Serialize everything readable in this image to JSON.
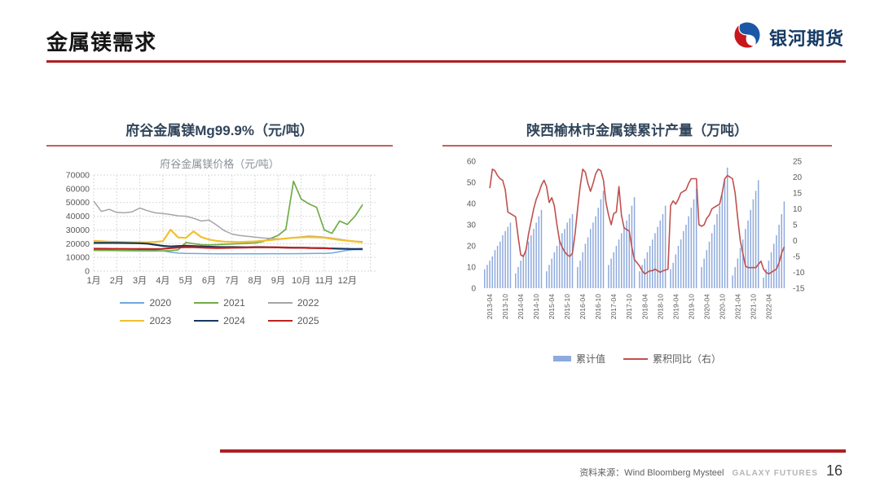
{
  "slide": {
    "title": "金属镁需求",
    "page_number": "16"
  },
  "logo": {
    "brand": "银河期货"
  },
  "footer": {
    "source": "资料来源：Wind Bloomberg Mysteel",
    "brand": "GALAXY FUTURES"
  },
  "theme": {
    "accent_red": "#AD1F24",
    "panel_rule_red": "#C2625C",
    "panel_title_color": "#31455A",
    "axis_text_color": "#595959",
    "grid_color": "#D9D9D9",
    "logo_navy": "#163A66",
    "logo_red": "#C8161D",
    "logo_blue": "#1B57A6"
  },
  "chart_data": [
    {
      "type": "line",
      "panel_title": "府谷金属镁Mg99.9%（元/吨）",
      "title": "府谷金属镁价格（元/吨）",
      "categories": [
        "1月",
        "2月",
        "3月",
        "4月",
        "5月",
        "6月",
        "7月",
        "8月",
        "9月",
        "10月",
        "11月",
        "12月"
      ],
      "ylim": [
        0,
        70000
      ],
      "ytick_step": 10000,
      "points_per_month": 3,
      "grid": true,
      "legend_rows": [
        [
          "2020",
          "2021",
          "2022"
        ],
        [
          "2023",
          "2024",
          "2025"
        ]
      ],
      "series": [
        {
          "name": "2020",
          "color": "#6FA8DC",
          "values": [
            15300,
            15250,
            15200,
            15150,
            15100,
            15050,
            15000,
            15000,
            14950,
            14800,
            13800,
            13100,
            12900,
            12800,
            12750,
            12700,
            12650,
            12650,
            12600,
            12600,
            12600,
            12650,
            12650,
            12700,
            12700,
            12700,
            12700,
            12750,
            12800,
            12850,
            12900,
            13200,
            14200,
            15200,
            15700,
            15500
          ]
        },
        {
          "name": "2021",
          "color": "#70AD47",
          "values": [
            15100,
            15050,
            15000,
            14950,
            14900,
            14850,
            14800,
            14750,
            14700,
            14700,
            14900,
            15500,
            20800,
            20000,
            19200,
            19100,
            19300,
            19600,
            19800,
            20000,
            20200,
            20500,
            21500,
            23800,
            26000,
            30500,
            65500,
            52500,
            49000,
            46500,
            30000,
            27500,
            36500,
            34000,
            40000,
            48500
          ]
        },
        {
          "name": "2022",
          "color": "#A6A6A6",
          "values": [
            51000,
            43500,
            45000,
            42800,
            42500,
            43200,
            46000,
            44000,
            42500,
            42000,
            41200,
            40300,
            40000,
            38500,
            36500,
            37200,
            33500,
            29500,
            27000,
            26000,
            25400,
            24800,
            24200,
            23800,
            23500,
            23800,
            24300,
            25000,
            25500,
            25200,
            24800,
            24000,
            23200,
            22400,
            21800,
            21500
          ]
        },
        {
          "name": "2023",
          "color": "#F2C02E",
          "values": [
            22000,
            21800,
            21500,
            21300,
            21200,
            21000,
            21000,
            21000,
            21300,
            21800,
            30200,
            24500,
            24200,
            29000,
            24800,
            23000,
            22000,
            21500,
            21300,
            21200,
            21400,
            21600,
            22100,
            22600,
            23200,
            23800,
            24300,
            24600,
            24800,
            24600,
            24400,
            23500,
            22800,
            22200,
            21600,
            21000
          ]
        },
        {
          "name": "2024",
          "color": "#17375E",
          "values": [
            20500,
            20500,
            20500,
            20500,
            20450,
            20400,
            20300,
            20000,
            19200,
            18400,
            18000,
            18300,
            18500,
            18300,
            18000,
            17800,
            17600,
            17500,
            17500,
            17450,
            17400,
            17500,
            17500,
            17400,
            17250,
            17100,
            17000,
            17000,
            16900,
            16800,
            16700,
            16500,
            16300,
            16200,
            16100,
            16200
          ]
        },
        {
          "name": "2025",
          "color": "#C0201E",
          "values": [
            16300,
            16300,
            16250,
            16200,
            16200,
            16150,
            16100,
            16050,
            16000,
            16200,
            16700,
            17200,
            17500,
            17400,
            17200,
            16950,
            16850,
            16900,
            17000,
            17100,
            17200,
            17300,
            17350,
            17300,
            17300,
            17200,
            17100,
            17000,
            16900,
            16800,
            16700,
            16500,
            null,
            null,
            null,
            null
          ]
        }
      ]
    },
    {
      "type": "bar+line",
      "panel_title": "陕西榆林市金属镁累计产量（万吨）",
      "left_ylim": [
        0,
        60
      ],
      "left_ytick_step": 10,
      "right_ylim": [
        -15,
        25
      ],
      "right_ytick_step": 5,
      "grid": false,
      "start_year": 2013,
      "months_total": 118,
      "bars": {
        "name": "累计值",
        "color": "#8FAADC",
        "by_year": {
          "2013": [
            9,
            11,
            13,
            15,
            18,
            20,
            22,
            25,
            27,
            29,
            31
          ],
          "2014": [
            7,
            10,
            13,
            16,
            19,
            22,
            25,
            28,
            31,
            34,
            37
          ],
          "2015": [
            8,
            11,
            14,
            17,
            20,
            23,
            26,
            28,
            31,
            33,
            35
          ],
          "2016": [
            10,
            13,
            17,
            21,
            24,
            28,
            31,
            34,
            38,
            42,
            46
          ],
          "2017": [
            11,
            14,
            17,
            20,
            23,
            26,
            29,
            32,
            35,
            39,
            43
          ],
          "2018": [
            8,
            11,
            14,
            17,
            20,
            23,
            26,
            29,
            32,
            35,
            39
          ],
          "2019": [
            9,
            12,
            16,
            20,
            23,
            27,
            30,
            34,
            38,
            42,
            47
          ],
          "2020": [
            10,
            14,
            18,
            22,
            26,
            30,
            35,
            39,
            44,
            51,
            57
          ],
          "2021": [
            6,
            10,
            14,
            19,
            23,
            28,
            32,
            37,
            42,
            46,
            51
          ],
          "2022": [
            5,
            9,
            13,
            17,
            21,
            25,
            30,
            35,
            41
          ]
        },
        "first_bar_month": 2
      },
      "line": {
        "name": "累积同比（右）",
        "color": "#C0504D",
        "start_index": 3,
        "values": [
          16.5,
          22.5,
          22,
          20.5,
          19.5,
          19,
          16,
          9,
          8.5,
          8,
          7.5,
          1,
          -4.5,
          -5,
          -3,
          2,
          6,
          10,
          13,
          15,
          17.5,
          19,
          17,
          12,
          13.5,
          11,
          5,
          0,
          -2,
          -3.5,
          -4.5,
          -5,
          -4,
          2,
          10,
          17,
          22.5,
          21.5,
          18,
          15.5,
          18,
          21,
          22.5,
          22,
          19,
          12,
          8,
          5,
          8.5,
          9,
          17,
          8,
          4,
          3.5,
          3,
          -2,
          -6,
          -7,
          -8,
          -9.5,
          -10.5,
          -10,
          -9.5,
          -9.5,
          -9,
          -9.5,
          -10,
          -9.5,
          -9.3,
          -9,
          11,
          12.5,
          11.5,
          13,
          15,
          15.5,
          16,
          18,
          19.5,
          19.5,
          19.5,
          5,
          4.5,
          5,
          7,
          8,
          10,
          10.5,
          11,
          11.5,
          15,
          19.5,
          20.5,
          20,
          19.5,
          15,
          7,
          0,
          -4,
          -8,
          -8.5,
          -8.5,
          -8.5,
          -8.5,
          -7.5,
          -6.5,
          -9,
          -10,
          -10.5,
          -10,
          -9.5,
          -9,
          -7,
          -4,
          -2
        ]
      },
      "xticks": [
        "2013-04",
        "2013-10",
        "2014-04",
        "2014-10",
        "2015-04",
        "2015-10",
        "2016-04",
        "2016-10",
        "2017-04",
        "2017-10",
        "2018-04",
        "2018-10",
        "2019-04",
        "2019-10",
        "2020-04",
        "2020-10",
        "2021-04",
        "2021-10",
        "2022-04"
      ]
    }
  ]
}
